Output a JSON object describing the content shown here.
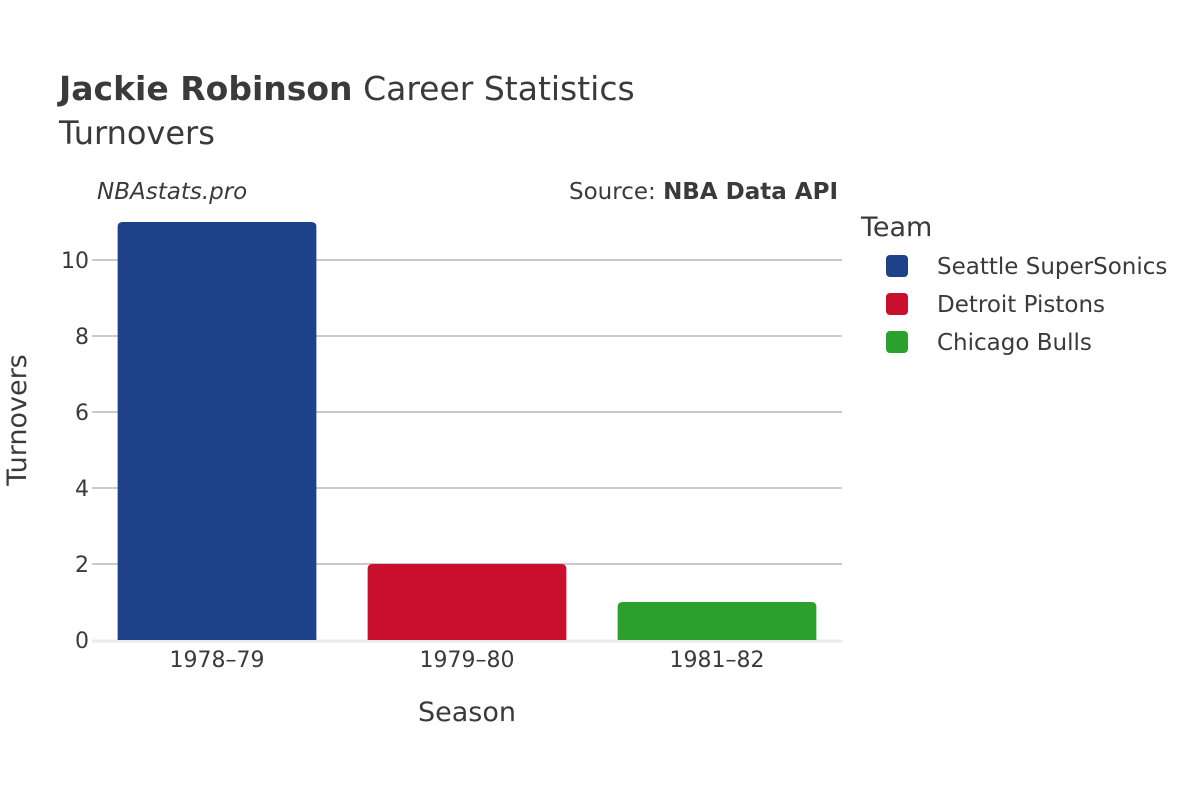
{
  "title": {
    "name": "Jackie Robinson",
    "rest": "Career Statistics",
    "subtitle": "Turnovers"
  },
  "watermark": "NBAstats.pro",
  "source": {
    "prefix": "Source: ",
    "name": "NBA Data API"
  },
  "legend": {
    "title": "Team"
  },
  "colors": {
    "text": "#3a3a3a",
    "grid": "#b8b8b8",
    "zero_line": "#ebebeb"
  },
  "chart_data": {
    "type": "bar",
    "title": "Jackie Robinson Career Statistics",
    "subtitle": "Turnovers",
    "xlabel": "Season",
    "ylabel": "Turnovers",
    "ylim": [
      0,
      11
    ],
    "yticks": [
      0,
      2,
      4,
      6,
      8,
      10
    ],
    "grid": true,
    "legend_position": "right",
    "categories": [
      "1978–79",
      "1979–80",
      "1981–82"
    ],
    "series": [
      {
        "name": "Seattle SuperSonics",
        "color": "#1d428a",
        "season": "1978–79",
        "value": 11
      },
      {
        "name": "Detroit Pistons",
        "color": "#c8102e",
        "season": "1979–80",
        "value": 2
      },
      {
        "name": "Chicago Bulls",
        "color": "#2ca02c",
        "season": "1981–82",
        "value": 1
      }
    ]
  }
}
